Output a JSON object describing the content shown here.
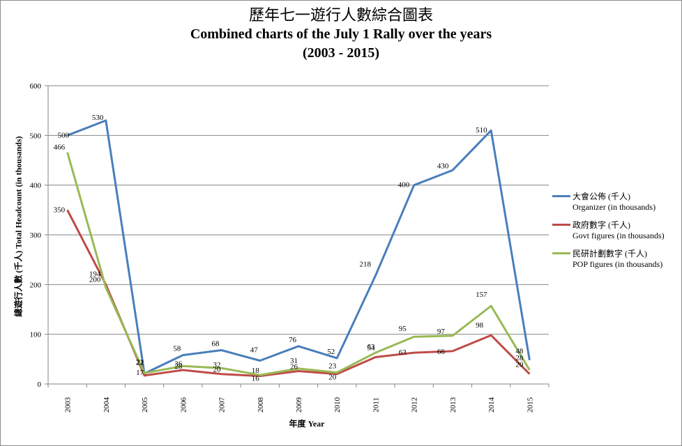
{
  "chart_data": {
    "type": "line",
    "title": "歷年七一遊行人數綜合圖表",
    "subtitle": "Combined charts of the July 1 Rally over the years",
    "subtitle2": "(2003 - 2015)",
    "xlabel": "年度 Year",
    "ylabel": "總遊行人數 (千人) Total Headcount (in thousands)",
    "ylim": [
      0,
      600
    ],
    "yticks": [
      0,
      100,
      200,
      300,
      400,
      500,
      600
    ],
    "grid": true,
    "legend_position": "right",
    "categories": [
      "2003",
      "2004",
      "2005",
      "2006",
      "2007",
      "2008",
      "2009",
      "2010",
      "2011",
      "2012",
      "2013",
      "2014",
      "2015"
    ],
    "series": [
      {
        "name": "大會公佈 (千人)",
        "name_en": "Organizer (in thousands)",
        "color": "#4a7ebb",
        "values": [
          500,
          530,
          21,
          58,
          68,
          47,
          76,
          52,
          218,
          400,
          430,
          510,
          48
        ],
        "labels": [
          "500",
          "530",
          "21",
          "58",
          "68",
          "47",
          "76",
          "52",
          "218",
          "400",
          "430",
          "510",
          "48"
        ]
      },
      {
        "name": "政府數字 (千人)",
        "name_en": "Govt figures (in thousands)",
        "color": "#be4b48",
        "values": [
          350,
          200,
          17,
          28,
          20,
          16,
          26,
          20,
          54,
          63,
          66,
          98,
          20
        ],
        "labels": [
          "350",
          "200",
          "17",
          "28",
          "20",
          "16",
          "26",
          "20",
          "54",
          "63",
          "66",
          "98",
          "20"
        ]
      },
      {
        "name": "民研計劃數字 (千人)",
        "name_en": "POP figures (in thousands)",
        "color": "#98b954",
        "values": [
          466,
          194,
          22,
          36,
          32,
          18,
          31,
          23,
          63,
          95,
          97,
          157,
          28
        ],
        "labels": [
          "466",
          "194",
          "22",
          "36",
          "32",
          "18",
          "31",
          "23",
          "63",
          "95",
          "97",
          "157",
          "28"
        ]
      }
    ]
  }
}
